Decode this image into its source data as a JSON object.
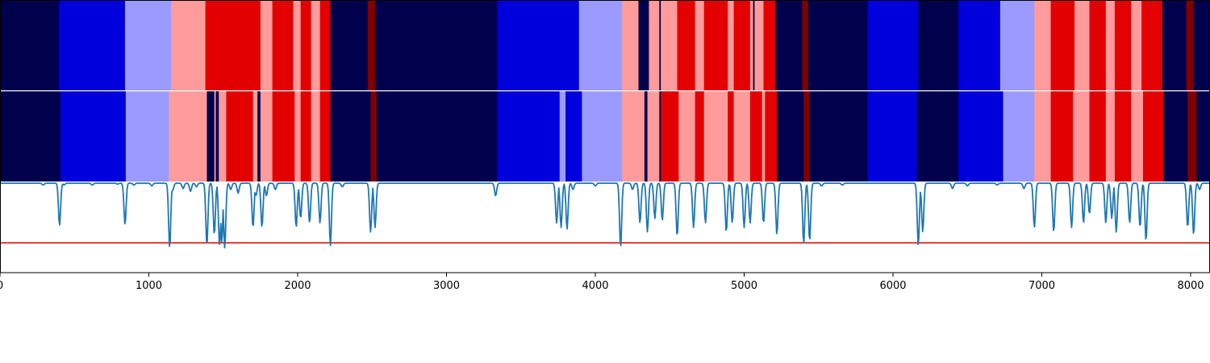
{
  "chart_data": {
    "type": "heatmap",
    "title": "",
    "xlabel": "",
    "ylabel": "",
    "xlim": [
      0,
      8130
    ],
    "grid": false,
    "legend": "none",
    "colors": {
      "0": "#00004c",
      "1": "#0000dd",
      "2": "#9b9bff",
      "3": "#ff9b9b",
      "4": "#e30000",
      "5": "#800000",
      "line": "#1f77b4",
      "threshold": "#e00000"
    },
    "color_levels": [
      0,
      1,
      2,
      3,
      4,
      5
    ],
    "x_ticks": [
      0,
      1000,
      2000,
      3000,
      4000,
      5000,
      6000,
      7000,
      8000
    ],
    "x_tick_labels": [
      "0",
      "1000",
      "2000",
      "3000",
      "4000",
      "5000",
      "6000",
      "7000",
      "8000"
    ],
    "tracks": [
      {
        "segments": [
          [
            0,
            395,
            0
          ],
          [
            395,
            840,
            1
          ],
          [
            840,
            1150,
            2
          ],
          [
            1150,
            1380,
            3
          ],
          [
            1380,
            1750,
            4
          ],
          [
            1750,
            1830,
            3
          ],
          [
            1830,
            1970,
            4
          ],
          [
            1970,
            2020,
            3
          ],
          [
            2020,
            2090,
            4
          ],
          [
            2090,
            2150,
            3
          ],
          [
            2150,
            2220,
            4
          ],
          [
            2220,
            2470,
            0
          ],
          [
            2470,
            2520,
            5
          ],
          [
            2520,
            3340,
            0
          ],
          [
            3340,
            3890,
            1
          ],
          [
            3890,
            4180,
            2
          ],
          [
            4180,
            4290,
            3
          ],
          [
            4290,
            4360,
            0
          ],
          [
            4360,
            4430,
            3
          ],
          [
            4430,
            4440,
            0
          ],
          [
            4440,
            4550,
            3
          ],
          [
            4550,
            4670,
            4
          ],
          [
            4670,
            4730,
            3
          ],
          [
            4730,
            4890,
            4
          ],
          [
            4890,
            4930,
            3
          ],
          [
            4930,
            5040,
            4
          ],
          [
            5040,
            5060,
            3
          ],
          [
            5060,
            5070,
            0
          ],
          [
            5070,
            5130,
            3
          ],
          [
            5130,
            5210,
            4
          ],
          [
            5210,
            5390,
            0
          ],
          [
            5390,
            5430,
            5
          ],
          [
            5430,
            5830,
            0
          ],
          [
            5830,
            6170,
            1
          ],
          [
            6170,
            6440,
            0
          ],
          [
            6440,
            6720,
            1
          ],
          [
            6720,
            6950,
            2
          ],
          [
            6950,
            7060,
            3
          ],
          [
            7060,
            7220,
            4
          ],
          [
            7220,
            7320,
            3
          ],
          [
            7320,
            7430,
            4
          ],
          [
            7430,
            7490,
            3
          ],
          [
            7490,
            7600,
            4
          ],
          [
            7600,
            7670,
            3
          ],
          [
            7670,
            7810,
            4
          ],
          [
            7810,
            7970,
            0
          ],
          [
            7970,
            8020,
            5
          ],
          [
            8020,
            8130,
            0
          ]
        ]
      },
      {
        "segments": [
          [
            0,
            405,
            0
          ],
          [
            405,
            845,
            1
          ],
          [
            845,
            1135,
            2
          ],
          [
            1135,
            1390,
            3
          ],
          [
            1390,
            1440,
            0
          ],
          [
            1440,
            1450,
            3
          ],
          [
            1450,
            1470,
            0
          ],
          [
            1470,
            1520,
            3
          ],
          [
            1520,
            1700,
            4
          ],
          [
            1700,
            1730,
            3
          ],
          [
            1730,
            1750,
            0
          ],
          [
            1750,
            1830,
            3
          ],
          [
            1830,
            1980,
            4
          ],
          [
            1980,
            2020,
            3
          ],
          [
            2020,
            2090,
            4
          ],
          [
            2090,
            2150,
            3
          ],
          [
            2150,
            2220,
            4
          ],
          [
            2220,
            2490,
            0
          ],
          [
            2490,
            2530,
            5
          ],
          [
            2530,
            3340,
            0
          ],
          [
            3340,
            3760,
            1
          ],
          [
            3760,
            3800,
            2
          ],
          [
            3800,
            3910,
            1
          ],
          [
            3910,
            4180,
            2
          ],
          [
            4180,
            4330,
            3
          ],
          [
            4330,
            4350,
            0
          ],
          [
            4350,
            4430,
            3
          ],
          [
            4430,
            4440,
            0
          ],
          [
            4440,
            4560,
            4
          ],
          [
            4560,
            4670,
            3
          ],
          [
            4670,
            4730,
            4
          ],
          [
            4730,
            4890,
            3
          ],
          [
            4890,
            4930,
            4
          ],
          [
            4930,
            5040,
            3
          ],
          [
            5040,
            5120,
            4
          ],
          [
            5120,
            5140,
            3
          ],
          [
            5140,
            5220,
            4
          ],
          [
            5220,
            5400,
            0
          ],
          [
            5400,
            5440,
            5
          ],
          [
            5440,
            5830,
            0
          ],
          [
            5830,
            6160,
            1
          ],
          [
            6160,
            6440,
            0
          ],
          [
            6440,
            6740,
            1
          ],
          [
            6740,
            6950,
            2
          ],
          [
            6950,
            7060,
            3
          ],
          [
            7060,
            7210,
            4
          ],
          [
            7210,
            7320,
            3
          ],
          [
            7320,
            7430,
            4
          ],
          [
            7430,
            7490,
            3
          ],
          [
            7490,
            7600,
            4
          ],
          [
            7600,
            7680,
            3
          ],
          [
            7680,
            7820,
            4
          ],
          [
            7820,
            7980,
            0
          ],
          [
            7980,
            8040,
            5
          ],
          [
            8040,
            8130,
            0
          ]
        ]
      }
    ],
    "line_panel": {
      "ylim": [
        0,
        1
      ],
      "threshold": 0.33,
      "baseline": 0.99,
      "dips": [
        [
          290,
          0.97
        ],
        [
          400,
          0.52
        ],
        [
          430,
          0.97
        ],
        [
          620,
          0.97
        ],
        [
          790,
          0.98
        ],
        [
          840,
          0.53
        ],
        [
          900,
          0.97
        ],
        [
          1020,
          0.96
        ],
        [
          1130,
          0.97
        ],
        [
          1140,
          0.27
        ],
        [
          1160,
          0.91
        ],
        [
          1230,
          0.93
        ],
        [
          1280,
          0.9
        ],
        [
          1320,
          0.95
        ],
        [
          1390,
          0.3
        ],
        [
          1440,
          0.42
        ],
        [
          1475,
          0.3
        ],
        [
          1490,
          0.33
        ],
        [
          1510,
          0.27
        ],
        [
          1550,
          0.92
        ],
        [
          1600,
          0.88
        ],
        [
          1700,
          0.5
        ],
        [
          1720,
          0.85
        ],
        [
          1760,
          0.5
        ],
        [
          1790,
          0.85
        ],
        [
          1850,
          0.92
        ],
        [
          1990,
          0.5
        ],
        [
          2020,
          0.6
        ],
        [
          2080,
          0.55
        ],
        [
          2150,
          0.55
        ],
        [
          2220,
          0.3
        ],
        [
          2300,
          0.95
        ],
        [
          2490,
          0.45
        ],
        [
          2520,
          0.5
        ],
        [
          3330,
          0.85
        ],
        [
          3740,
          0.55
        ],
        [
          3770,
          0.5
        ],
        [
          3810,
          0.48
        ],
        [
          3850,
          0.92
        ],
        [
          4000,
          0.96
        ],
        [
          4170,
          0.28
        ],
        [
          4250,
          0.92
        ],
        [
          4300,
          0.55
        ],
        [
          4350,
          0.45
        ],
        [
          4400,
          0.6
        ],
        [
          4450,
          0.58
        ],
        [
          4550,
          0.4
        ],
        [
          4660,
          0.5
        ],
        [
          4740,
          0.55
        ],
        [
          4880,
          0.45
        ],
        [
          4920,
          0.55
        ],
        [
          5000,
          0.5
        ],
        [
          5040,
          0.55
        ],
        [
          5130,
          0.55
        ],
        [
          5220,
          0.42
        ],
        [
          5400,
          0.32
        ],
        [
          5440,
          0.35
        ],
        [
          5520,
          0.96
        ],
        [
          5660,
          0.97
        ],
        [
          6170,
          0.3
        ],
        [
          6200,
          0.45
        ],
        [
          6400,
          0.93
        ],
        [
          6500,
          0.96
        ],
        [
          6700,
          0.97
        ],
        [
          6880,
          0.93
        ],
        [
          6950,
          0.5
        ],
        [
          7080,
          0.45
        ],
        [
          7200,
          0.5
        ],
        [
          7280,
          0.55
        ],
        [
          7320,
          0.65
        ],
        [
          7430,
          0.55
        ],
        [
          7470,
          0.6
        ],
        [
          7500,
          0.45
        ],
        [
          7590,
          0.55
        ],
        [
          7660,
          0.5
        ],
        [
          7700,
          0.35
        ],
        [
          7980,
          0.5
        ],
        [
          8020,
          0.42
        ],
        [
          8060,
          0.92
        ]
      ]
    }
  }
}
